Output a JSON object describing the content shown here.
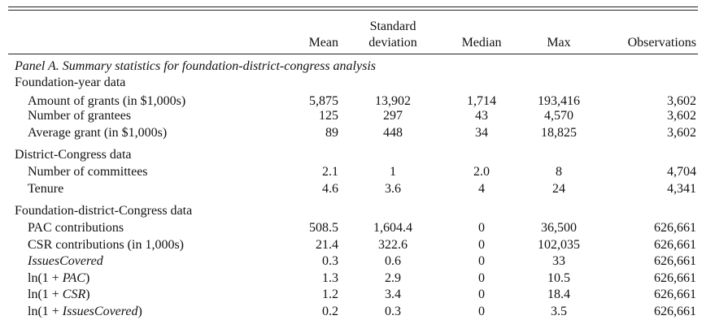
{
  "header": {
    "mean": "Mean",
    "sd_line1": "Standard",
    "sd_line2": "deviation",
    "median": "Median",
    "max": "Max",
    "observations": "Observations"
  },
  "panel_title": "Panel A. Summary statistics for foundation-district-congress analysis",
  "sections": [
    {
      "title": "Foundation-year data",
      "rows": [
        {
          "label": "Amount of grants (in $1,000s)",
          "mean": "5,875",
          "sd": "13,902",
          "median": "1,714",
          "max": "193,416",
          "obs": "3,602"
        },
        {
          "label": "Number of grantees",
          "mean": "125",
          "sd": "297",
          "median": "43",
          "max": "4,570",
          "obs": "3,602"
        },
        {
          "label": "Average grant (in $1,000s)",
          "mean": "89",
          "sd": "448",
          "median": "34",
          "max": "18,825",
          "obs": "3,602"
        }
      ]
    },
    {
      "title": "District-Congress data",
      "rows": [
        {
          "label": "Number of committees",
          "mean": "2.1",
          "sd": "1",
          "median": "2.0",
          "max": "8",
          "obs": "4,704"
        },
        {
          "label": "Tenure",
          "mean": "4.6",
          "sd": "3.6",
          "median": "4",
          "max": "24",
          "obs": "4,341"
        }
      ]
    },
    {
      "title": "Foundation-district-Congress data",
      "rows": [
        {
          "label": "PAC contributions",
          "mean": "508.5",
          "sd": "1,604.4",
          "median": "0",
          "max": "36,500",
          "obs": "626,661"
        },
        {
          "label": "CSR contributions (in 1,000s)",
          "mean": "21.4",
          "sd": "322.6",
          "median": "0",
          "max": "102,035",
          "obs": "626,661"
        },
        {
          "label": "IssuesCovered",
          "mean": "0.3",
          "sd": "0.6",
          "median": "0",
          "max": "33",
          "obs": "626,661"
        },
        {
          "label_prefix": "ln(1 + ",
          "label_var": "PAC",
          "label_suffix": ")",
          "mean": "1.3",
          "sd": "2.9",
          "median": "0",
          "max": "10.5",
          "obs": "626,661"
        },
        {
          "label_prefix": "ln(1 + ",
          "label_var": "CSR",
          "label_suffix": ")",
          "mean": "1.2",
          "sd": "3.4",
          "median": "0",
          "max": "18.4",
          "obs": "626,661"
        },
        {
          "label_prefix": "ln(1 + ",
          "label_var": "IssuesCovered",
          "label_suffix": ")",
          "mean": "0.2",
          "sd": "0.3",
          "median": "0",
          "max": "3.5",
          "obs": "626,661"
        }
      ]
    }
  ]
}
